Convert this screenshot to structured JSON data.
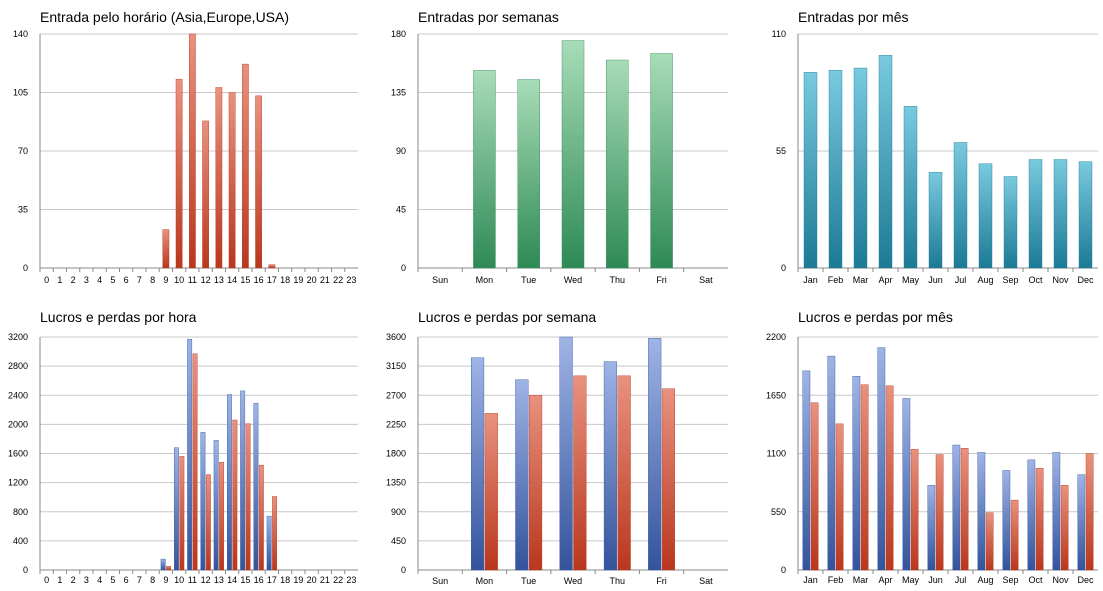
{
  "chart_data": [
    {
      "type": "bar",
      "title": "Entrada pelo horário (Asia,Europe,USA)",
      "categories": [
        "0",
        "1",
        "2",
        "3",
        "4",
        "5",
        "6",
        "7",
        "8",
        "9",
        "10",
        "11",
        "12",
        "13",
        "14",
        "15",
        "16",
        "17",
        "18",
        "19",
        "20",
        "21",
        "22",
        "23"
      ],
      "series": [
        {
          "values": [
            0,
            0,
            0,
            0,
            0,
            0,
            0,
            0,
            0,
            23,
            113,
            140,
            88,
            108,
            105,
            122,
            103,
            2,
            0,
            0,
            0,
            0,
            0,
            0
          ]
        }
      ],
      "yticks": [
        "0",
        "35",
        "70",
        "105",
        "140"
      ],
      "ylim": [
        0,
        140
      ],
      "grid": true,
      "legend": "none"
    },
    {
      "type": "bar",
      "title": "Entradas por semanas",
      "categories": [
        "Sun",
        "Mon",
        "Tue",
        "Wed",
        "Thu",
        "Fri",
        "Sat"
      ],
      "series": [
        {
          "values": [
            0,
            152,
            145,
            175,
            160,
            165,
            0
          ]
        }
      ],
      "yticks": [
        "0",
        "45",
        "90",
        "135",
        "180"
      ],
      "ylim": [
        0,
        180
      ],
      "grid": true,
      "legend": "none"
    },
    {
      "type": "bar",
      "title": "Entradas por mês",
      "categories": [
        "Jan",
        "Feb",
        "Mar",
        "Apr",
        "May",
        "Jun",
        "Jul",
        "Aug",
        "Sep",
        "Oct",
        "Nov",
        "Dec"
      ],
      "series": [
        {
          "values": [
            92,
            93,
            94,
            100,
            76,
            45,
            59,
            49,
            43,
            51,
            51,
            50
          ]
        }
      ],
      "yticks": [
        "0",
        "55",
        "110"
      ],
      "ylim": [
        0,
        110
      ],
      "grid": true,
      "legend": "none"
    },
    {
      "type": "bar",
      "title": "Lucros e perdas por hora",
      "categories": [
        "0",
        "1",
        "2",
        "3",
        "4",
        "5",
        "6",
        "7",
        "8",
        "9",
        "10",
        "11",
        "12",
        "13",
        "14",
        "15",
        "16",
        "17",
        "18",
        "19",
        "20",
        "21",
        "22",
        "23"
      ],
      "series": [
        {
          "values": [
            0,
            0,
            0,
            0,
            0,
            0,
            0,
            0,
            0,
            150,
            1680,
            3170,
            1890,
            1780,
            2410,
            2460,
            2290,
            740,
            0,
            0,
            0,
            0,
            0,
            0
          ]
        },
        {
          "values": [
            0,
            0,
            0,
            0,
            0,
            0,
            0,
            0,
            0,
            50,
            1560,
            2970,
            1310,
            1480,
            2060,
            2010,
            1440,
            1010,
            0,
            0,
            0,
            0,
            0,
            0
          ]
        }
      ],
      "yticks": [
        "0",
        "400",
        "800",
        "1200",
        "1600",
        "2000",
        "2400",
        "2800",
        "3200"
      ],
      "ylim": [
        0,
        3200
      ],
      "grid": true,
      "legend": "none"
    },
    {
      "type": "bar",
      "title": "Lucros e perdas por semana",
      "categories": [
        "Sun",
        "Mon",
        "Tue",
        "Wed",
        "Thu",
        "Fri",
        "Sat"
      ],
      "series": [
        {
          "values": [
            0,
            3280,
            2940,
            3600,
            3220,
            3580,
            0
          ]
        },
        {
          "values": [
            0,
            2420,
            2700,
            3000,
            3000,
            2800,
            0
          ]
        }
      ],
      "yticks": [
        "0",
        "450",
        "900",
        "1350",
        "1800",
        "2250",
        "2700",
        "3150",
        "3600"
      ],
      "ylim": [
        0,
        3600
      ],
      "grid": true,
      "legend": "none"
    },
    {
      "type": "bar",
      "title": "Lucros e perdas por mês",
      "categories": [
        "Jan",
        "Feb",
        "Mar",
        "Apr",
        "May",
        "Jun",
        "Jul",
        "Aug",
        "Sep",
        "Oct",
        "Nov",
        "Dec"
      ],
      "series": [
        {
          "values": [
            1880,
            2020,
            1830,
            2100,
            1620,
            800,
            1180,
            1110,
            940,
            1040,
            1110,
            900
          ]
        },
        {
          "values": [
            1580,
            1380,
            1750,
            1740,
            1140,
            1090,
            1150,
            540,
            660,
            960,
            800,
            1100
          ]
        }
      ],
      "yticks": [
        "0",
        "550",
        "1100",
        "1650",
        "2200"
      ],
      "ylim": [
        0,
        2200
      ],
      "grid": true,
      "legend": "none"
    }
  ],
  "colors": {
    "red_top": "#e8927f",
    "red_bottom": "#b9371d",
    "green_top": "#a8dcb8",
    "green_bottom": "#2e8a55",
    "teal_top": "#79cadf",
    "teal_bottom": "#1c7a95",
    "blue_top": "#9fb4e6",
    "blue_bottom": "#33539c",
    "grid": "#c8c8c8",
    "axis": "#888888"
  }
}
